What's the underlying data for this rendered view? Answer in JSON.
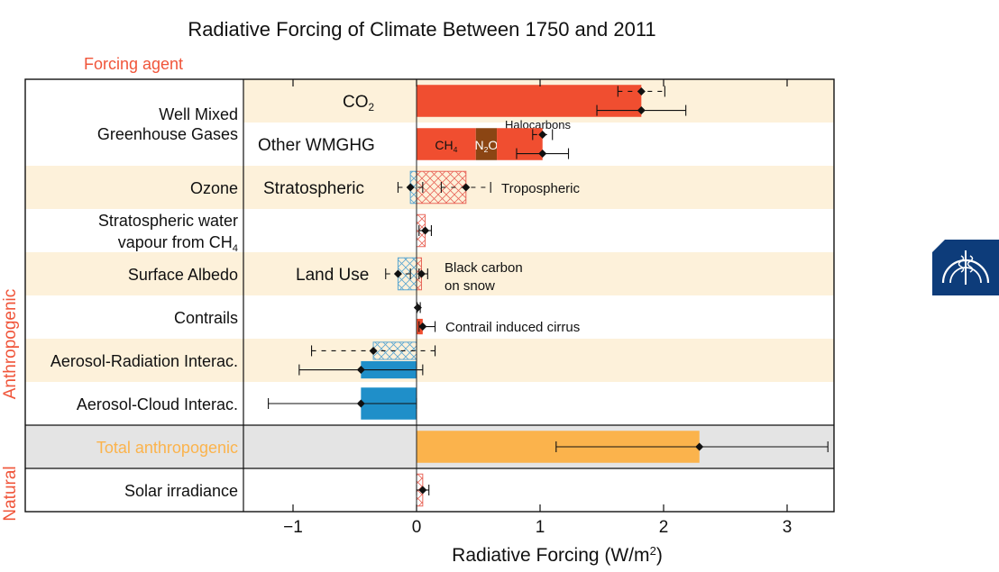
{
  "chart_data": {
    "type": "bar",
    "orientation": "horizontal",
    "title": "Radiative Forcing of Climate Between 1750 and 2011",
    "column_header": "Forcing agent",
    "xlabel": "Radiative Forcing (W/m",
    "xlabel_sup": "2",
    "xlabel_close": ")",
    "xlim": [
      -1.4,
      3.4
    ],
    "xticks": [
      {
        "value": -1,
        "label": "−1"
      },
      {
        "value": 0,
        "label": "0"
      },
      {
        "value": 1,
        "label": "1"
      },
      {
        "value": 2,
        "label": "2"
      },
      {
        "value": 3,
        "label": "3"
      }
    ],
    "groups": [
      {
        "key": "anthropogenic",
        "label": "Anthropogenic",
        "first_row": 0,
        "last_row": 8
      },
      {
        "key": "natural",
        "label": "Natural",
        "first_row": 9,
        "last_row": 9
      }
    ],
    "colors": {
      "warming": "#f04e30",
      "n2o": "#8b4513",
      "cooling": "#1f8fc9",
      "total": "#fbb34c",
      "band": "#fdf1da",
      "total_band": "#e4e4e4",
      "group_label": "#f0553a",
      "total_label": "#fbb34c",
      "hatch_red": "#e8675a",
      "hatch_blue": "#5aa6d0"
    },
    "rows": [
      {
        "key": "co2",
        "label": "Well Mixed",
        "label2": "Greenhouse Gases",
        "span": 2,
        "band": true,
        "sub_label": "CO",
        "sub_label_sub": "2",
        "bars": [
          {
            "value": 1.82,
            "color": "warming"
          }
        ],
        "errors": [
          {
            "center": 1.82,
            "low": 1.63,
            "high": 2.01,
            "dashed": true,
            "offset": -0.22
          },
          {
            "center": 1.82,
            "low": 1.46,
            "high": 2.18,
            "dashed": false,
            "offset": 0.22
          }
        ]
      },
      {
        "key": "other-wmghg",
        "band": false,
        "sub_label": "Other WMGHG",
        "bars": [
          {
            "start": 0,
            "end": 0.48,
            "color": "warming",
            "label": "CH",
            "label_sub": "4"
          },
          {
            "start": 0.48,
            "end": 0.65,
            "color": "n2o",
            "label": "N",
            "label_sub": "2",
            "label_tail": "O"
          },
          {
            "start": 0.65,
            "end": 1.02,
            "color": "warming"
          }
        ],
        "bar_annotation": "Halocarbons",
        "errors": [
          {
            "center": 1.02,
            "low": 0.94,
            "high": 1.1,
            "dashed": true,
            "offset": -0.22
          },
          {
            "center": 1.02,
            "low": 0.81,
            "high": 1.23,
            "dashed": false,
            "offset": 0.22
          }
        ]
      },
      {
        "key": "ozone",
        "label": "Ozone",
        "band": true,
        "sub_label": "Stratospheric",
        "bars": [
          {
            "start": -0.05,
            "end": 0,
            "color": "cooling",
            "hatched": true
          },
          {
            "start": 0,
            "end": 0.4,
            "color": "warming",
            "hatched": true
          }
        ],
        "right_annotation": "Tropospheric",
        "errors": [
          {
            "center": -0.05,
            "low": -0.15,
            "high": 0.05,
            "dashed": true,
            "offset": 0
          },
          {
            "center": 0.4,
            "low": 0.2,
            "high": 0.6,
            "dashed": true,
            "offset": 0
          }
        ]
      },
      {
        "key": "strat-water",
        "label": "Stratospheric water",
        "label2": "vapour from CH",
        "label2_sub": "4",
        "band": false,
        "bars": [
          {
            "start": 0,
            "end": 0.07,
            "color": "warming",
            "hatched": true
          }
        ],
        "errors": [
          {
            "center": 0.07,
            "low": 0.02,
            "high": 0.12,
            "dashed": false,
            "offset": 0
          }
        ]
      },
      {
        "key": "surface-albedo",
        "label": "Surface Albedo",
        "band": true,
        "sub_label": "Land Use",
        "right_annotation": "Black carbon",
        "right_annotation2": "on snow",
        "bars": [
          {
            "start": -0.15,
            "end": 0,
            "color": "cooling",
            "hatched": true
          },
          {
            "start": 0,
            "end": 0.04,
            "color": "warming",
            "hatched": true
          }
        ],
        "errors": [
          {
            "center": -0.15,
            "low": -0.25,
            "high": -0.05,
            "dashed": true,
            "offset": 0
          },
          {
            "center": 0.04,
            "low": 0.02,
            "high": 0.09,
            "dashed": false,
            "offset": 0
          }
        ]
      },
      {
        "key": "contrails",
        "label": "Contrails",
        "band": false,
        "right_annotation": "Contrail induced cirrus",
        "bars": [
          {
            "start": 0,
            "end": 0.05,
            "color": "warming",
            "offset": 0.22,
            "height": 0.36
          }
        ],
        "errors": [
          {
            "center": 0.01,
            "low": 0.005,
            "high": 0.03,
            "dashed": false,
            "offset": -0.22
          },
          {
            "center": 0.05,
            "low": 0.02,
            "high": 0.15,
            "dashed": false,
            "offset": 0.22
          }
        ]
      },
      {
        "key": "aerosol-radiation",
        "label": "Aerosol-Radiation Interac.",
        "band": true,
        "bars": [
          {
            "start": -0.35,
            "end": 0,
            "color": "cooling",
            "hatched": true,
            "offset": -0.22,
            "height": 0.4
          },
          {
            "start": -0.45,
            "end": 0,
            "color": "cooling",
            "offset": 0.22,
            "height": 0.4
          }
        ],
        "errors": [
          {
            "center": -0.35,
            "low": -0.85,
            "high": 0.15,
            "dashed": true,
            "offset": -0.22
          },
          {
            "center": -0.45,
            "low": -0.95,
            "high": 0.05,
            "dashed": false,
            "offset": 0.22
          }
        ]
      },
      {
        "key": "aerosol-cloud",
        "label": "Aerosol-Cloud Interac.",
        "band": false,
        "bars": [
          {
            "start": -0.45,
            "end": 0,
            "color": "cooling"
          }
        ],
        "errors": [
          {
            "center": -0.45,
            "low": -1.2,
            "high": 0,
            "dashed": false,
            "offset": 0
          }
        ]
      },
      {
        "key": "total-anthropogenic",
        "label": "Total anthropogenic",
        "band": "total",
        "label_color": "total_label",
        "bars": [
          {
            "start": 0,
            "end": 2.29,
            "color": "total"
          }
        ],
        "errors": [
          {
            "center": 2.29,
            "low": 1.13,
            "high": 3.33,
            "dashed": false,
            "offset": 0
          }
        ]
      },
      {
        "key": "solar",
        "label": "Solar irradiance",
        "band": false,
        "bars": [
          {
            "start": 0,
            "end": 0.05,
            "color": "warming",
            "hatched": true
          }
        ],
        "errors": [
          {
            "center": 0.05,
            "low": 0,
            "high": 0.1,
            "dashed": false,
            "offset": 0
          }
        ]
      }
    ]
  },
  "badge": {
    "icon": "ipcc-logo-icon",
    "color": "#0d3c7a"
  }
}
